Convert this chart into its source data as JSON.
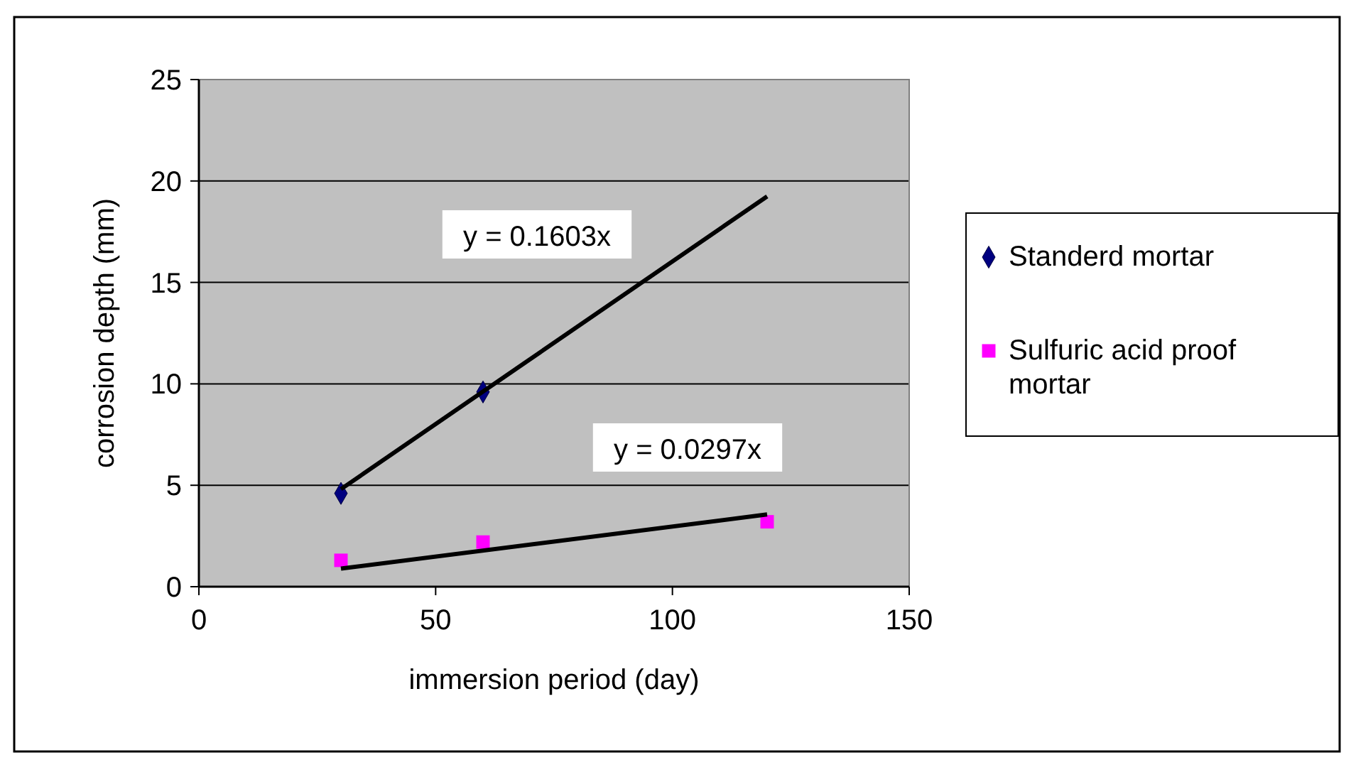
{
  "chart_data": {
    "type": "scatter",
    "xlabel": "immersion period (day)",
    "ylabel": "corrosion depth (mm)",
    "xlim": [
      0,
      150
    ],
    "xticks": [
      0,
      50,
      100,
      150
    ],
    "ylim": [
      0,
      25
    ],
    "yticks": [
      0,
      5,
      10,
      15,
      20,
      25
    ],
    "grid": "y",
    "legend": "right",
    "series": [
      {
        "name": "Standerd mortar",
        "color": "#000080",
        "marker": "diamond",
        "x": [
          30,
          60
        ],
        "values": [
          4.6,
          9.6
        ]
      },
      {
        "name": "Sulfuric acid proof mortar",
        "color": "#ff00ff",
        "marker": "square",
        "x": [
          30,
          60,
          120
        ],
        "values": [
          1.3,
          2.2,
          3.2
        ]
      },
      {
        "type": "line",
        "color": "#000000",
        "marker": "none",
        "x": [
          30,
          120
        ],
        "values": [
          4.81,
          19.24
        ]
      },
      {
        "type": "line",
        "color": "#000000",
        "marker": "none",
        "x": [
          30,
          120
        ],
        "values": [
          0.89,
          3.56
        ]
      }
    ],
    "annotations": [
      "y = 0.1603x",
      "y = 0.0297x"
    ]
  }
}
